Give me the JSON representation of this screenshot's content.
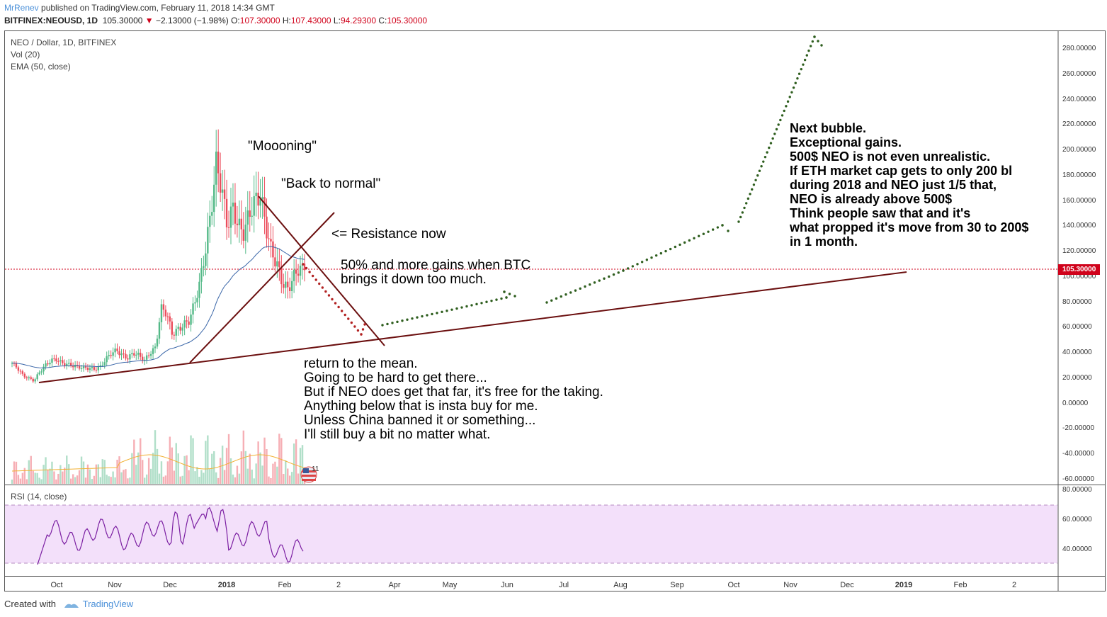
{
  "header": {
    "user": "MrRenev",
    "published": " published on TradingView.com, February 11, 2018 14:34 GMT",
    "symbol": "BITFINEX:NEOUSD, 1D",
    "last": "105.30000",
    "change": "−2.13000 (−1.98%)",
    "o_label": "O:",
    "o": "107.30000",
    "h_label": "H:",
    "h": "107.43000",
    "l_label": "L:",
    "l": "94.29300",
    "c_label": "C:",
    "c": "105.30000"
  },
  "legend": {
    "line1": "NEO / Dollar, 1D, BITFINEX",
    "line2": "Vol (20)",
    "line3": "EMA (50, close)"
  },
  "rsi_label": "RSI (14, close)",
  "price_tag": "105.30000",
  "annotations": {
    "moooning": "\"Moooning\"",
    "back_to_normal": "\"Back to normal\"",
    "resistance": "<= Resistance now",
    "gains": "50% and more gains when BTC\nbrings it down too much.",
    "mean": "return to the mean.\nGoing to be hard to get there...\nBut if NEO does get that far, it's free for the taking.\nAnything below that is insta buy for me.\nUnless China banned it or something...\nI'll still buy a bit no matter what.",
    "bubble": "Next bubble.\nExceptional gains.\n500$ NEO is not even unrealistic.\nIf ETH market cap gets to only 200 bl\nduring 2018 and NEO just 1/5 that,\nNEO is already above 500$\nThink people saw that and it's\nwhat propped it's move from 30 to 200$\nin 1 month."
  },
  "volume_badge": "11",
  "footer": {
    "created": "Created with",
    "brand": "TradingView"
  },
  "colors": {
    "up": "#53b987",
    "down": "#eb4d5c",
    "trend": "#6b0f0f",
    "dots_red": "#b22222",
    "dots_green": "#2e5e1e",
    "rsi": "#7b1fa2",
    "rsi_band": "#f3e0fa",
    "ema": "#3a66a8",
    "vol_ma": "#f2b134"
  },
  "chart_data": {
    "type": "candlestick",
    "y_axis": {
      "price_ticks": [
        "280.00000",
        "260.00000",
        "240.00000",
        "220.00000",
        "200.00000",
        "180.00000",
        "160.00000",
        "140.00000",
        "120.00000",
        "100.00000",
        "80.00000",
        "60.00000",
        "40.00000",
        "20.00000",
        "0.00000",
        "-20.00000",
        "-40.00000",
        "-60.00000"
      ],
      "rsi_ticks": [
        "80.00000",
        "60.00000",
        "40.00000"
      ],
      "rsi_levels": [
        70,
        30
      ]
    },
    "x_axis": {
      "ticks": [
        {
          "label": "Oct",
          "bold": false
        },
        {
          "label": "Nov",
          "bold": false
        },
        {
          "label": "Dec",
          "bold": false
        },
        {
          "label": "2018",
          "bold": true
        },
        {
          "label": "Feb",
          "bold": false
        },
        {
          "label": "2",
          "bold": false
        },
        {
          "label": "Apr",
          "bold": false
        },
        {
          "label": "May",
          "bold": false
        },
        {
          "label": "Jun",
          "bold": false
        },
        {
          "label": "Jul",
          "bold": false
        },
        {
          "label": "Aug",
          "bold": false
        },
        {
          "label": "Sep",
          "bold": false
        },
        {
          "label": "Oct",
          "bold": false
        },
        {
          "label": "Nov",
          "bold": false
        },
        {
          "label": "Dec",
          "bold": false
        },
        {
          "label": "2019",
          "bold": true
        },
        {
          "label": "Feb",
          "bold": false
        },
        {
          "label": "2",
          "bold": false
        }
      ]
    },
    "ohlc_approx": [
      {
        "period": "Sep",
        "close": [
          32,
          28,
          22,
          20,
          18,
          25
        ]
      },
      {
        "period": "Oct",
        "close": [
          30,
          34,
          35,
          32,
          31,
          30,
          29,
          28
        ]
      },
      {
        "period": "Nov",
        "close": [
          28,
          27,
          29,
          35,
          40,
          42,
          38,
          36,
          40,
          38
        ]
      },
      {
        "period": "Dec",
        "close": [
          34,
          40,
          44,
          75,
          72,
          55,
          58,
          62,
          65,
          78
        ]
      },
      {
        "period": "Jan",
        "close": [
          95,
          120,
          150,
          190,
          170,
          140,
          155,
          140,
          135,
          150,
          160,
          165
        ]
      },
      {
        "period": "Feb",
        "close": [
          140,
          120,
          110,
          95,
          90,
          100,
          107,
          105.3
        ]
      }
    ],
    "last_close": 105.3
  }
}
